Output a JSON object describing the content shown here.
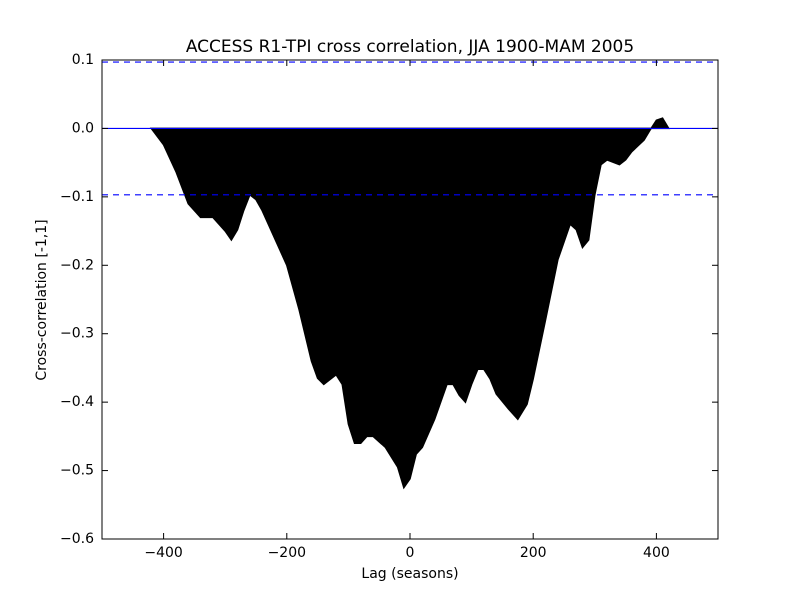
{
  "chart_data": {
    "type": "xcorr",
    "title": "ACCESS R1-TPI cross correlation, JJA 1900-MAM 2005",
    "x_label": "Lag (seasons)",
    "y_label": "Cross-correlation [-1,1]",
    "x": [
      -420,
      -400,
      -380,
      -360,
      -340,
      -320,
      -300,
      -290,
      -280,
      -270,
      -260,
      -250,
      -240,
      -220,
      -200,
      -180,
      -160,
      -150,
      -140,
      -120,
      -110,
      -100,
      -90,
      -80,
      -70,
      -60,
      -40,
      -20,
      -10,
      0,
      10,
      20,
      40,
      60,
      70,
      80,
      90,
      100,
      110,
      120,
      130,
      140,
      160,
      175,
      190,
      200,
      220,
      240,
      260,
      270,
      280,
      290,
      300,
      310,
      320,
      340,
      350,
      360,
      380,
      390,
      400,
      410,
      420
    ],
    "values": [
      0,
      -0.024,
      -0.063,
      -0.11,
      -0.13,
      -0.13,
      -0.15,
      -0.163,
      -0.148,
      -0.12,
      -0.097,
      -0.104,
      -0.12,
      -0.16,
      -0.2,
      -0.265,
      -0.34,
      -0.365,
      -0.374,
      -0.36,
      -0.374,
      -0.432,
      -0.46,
      -0.46,
      -0.45,
      -0.45,
      -0.466,
      -0.495,
      -0.525,
      -0.512,
      -0.476,
      -0.466,
      -0.425,
      -0.374,
      -0.374,
      -0.39,
      -0.4,
      -0.374,
      -0.352,
      -0.352,
      -0.366,
      -0.388,
      -0.41,
      -0.425,
      -0.403,
      -0.366,
      -0.28,
      -0.192,
      -0.14,
      -0.148,
      -0.174,
      -0.163,
      -0.097,
      -0.053,
      -0.046,
      -0.053,
      -0.046,
      -0.034,
      -0.017,
      -0.002,
      0.012,
      0.015,
      0
    ],
    "color": "#000000",
    "zero_line_color": "#0000ff",
    "confidence": [
      0.097,
      -0.097
    ],
    "confidence_color": "#0000ff",
    "xlim": [
      -500,
      500
    ],
    "xticks": [
      {
        "value": -400,
        "label": "−400"
      },
      {
        "value": -200,
        "label": "−200"
      },
      0,
      200,
      400
    ],
    "ylim": [
      -0.6,
      0.1
    ],
    "yticks": [
      {
        "value": -0.6,
        "label": "−0.6"
      },
      {
        "value": -0.5,
        "label": "−0.5"
      },
      {
        "value": -0.4,
        "label": "−0.4"
      },
      {
        "value": -0.3,
        "label": "−0.3"
      },
      {
        "value": -0.2,
        "label": "−0.2"
      },
      {
        "value": -0.1,
        "label": "−0.1"
      },
      {
        "value": 0,
        "label": "0.0"
      },
      0.1
    ]
  }
}
